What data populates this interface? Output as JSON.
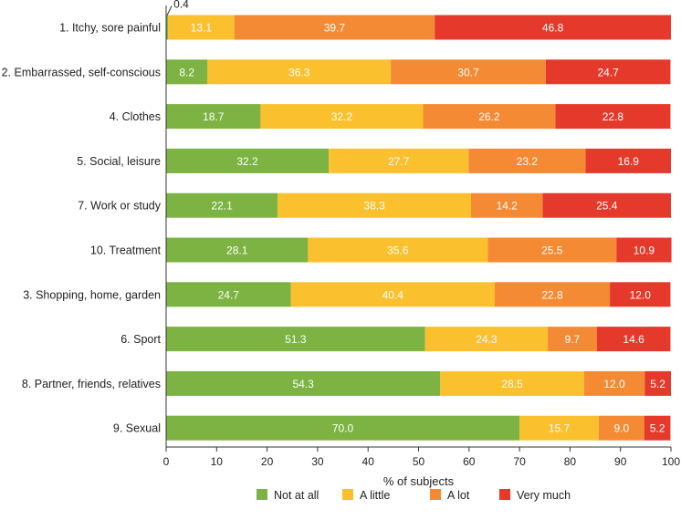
{
  "chart_data": {
    "type": "bar",
    "orientation": "horizontal",
    "stacked": true,
    "title": "",
    "xlabel": "% of subjects",
    "ylabel": "",
    "xlim": [
      0,
      100
    ],
    "xticks": [
      0,
      10,
      20,
      30,
      40,
      50,
      60,
      70,
      80,
      90,
      100
    ],
    "grid": false,
    "legend_position": "bottom",
    "categories": [
      "1. Itchy, sore painful",
      "2. Embarrassed, self-conscious",
      "4. Clothes",
      "5. Social, leisure",
      "7. Work or study",
      "10. Treatment",
      "3. Shopping, home, garden",
      "6. Sport",
      "8. Partner, friends, relatives",
      "9. Sexual"
    ],
    "series": [
      {
        "name": "Not at all",
        "color": "#7cb342",
        "values": [
          0.4,
          8.2,
          18.7,
          32.2,
          22.1,
          28.1,
          24.7,
          51.3,
          54.3,
          70.0
        ],
        "labels": [
          "0.4",
          "8.2",
          "18.7",
          "32.2",
          "22.1",
          "28.1",
          "24.7",
          "51.3",
          "54.3",
          "70.0"
        ]
      },
      {
        "name": "A little",
        "color": "#fbc02d",
        "values": [
          13.1,
          36.3,
          32.2,
          27.7,
          38.3,
          35.6,
          40.4,
          24.3,
          28.5,
          15.7
        ],
        "labels": [
          "13.1",
          "36.3",
          "32.2",
          "27.7",
          "38.3",
          "35.6",
          "40.4",
          "24.3",
          "28.5",
          "15.7"
        ]
      },
      {
        "name": "A lot",
        "color": "#f58a35",
        "values": [
          39.7,
          30.7,
          26.2,
          23.2,
          14.2,
          25.5,
          22.8,
          9.7,
          12.0,
          9.0
        ],
        "labels": [
          "39.7",
          "30.7",
          "26.2",
          "23.2",
          "14.2",
          "25.5",
          "22.8",
          "9.7",
          "12.0",
          "9.0"
        ]
      },
      {
        "name": "Very much",
        "color": "#e53a2b",
        "values": [
          46.8,
          24.7,
          22.8,
          16.9,
          25.4,
          10.9,
          12.0,
          14.6,
          5.2,
          5.2
        ],
        "labels": [
          "46.8",
          "24.7",
          "22.8",
          "16.9",
          "25.4",
          "10.9",
          "12.0",
          "14.6",
          "5.2",
          "5.2"
        ]
      }
    ],
    "annotations": [
      {
        "text": "0.4",
        "category_index": 0,
        "series_index": 0,
        "placement": "above-callout"
      }
    ]
  }
}
